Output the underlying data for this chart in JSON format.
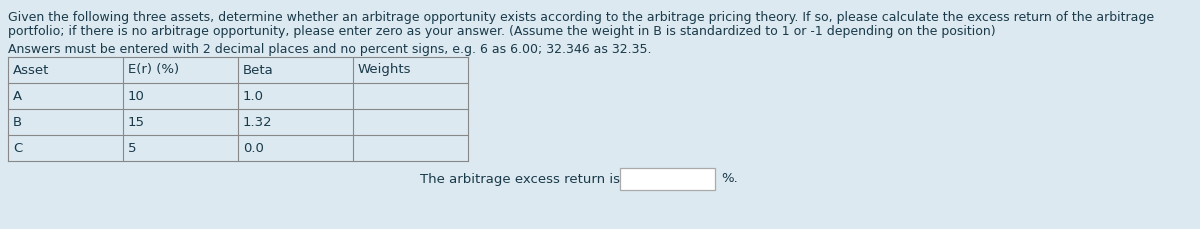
{
  "background_color": "#dce9f0",
  "text_color": "#1a3a4a",
  "title_line1": "Given the following three assets, determine whether an arbitrage opportunity exists according to the arbitrage pricing theory. If so, please calculate the excess return of the arbitrage",
  "title_line2": "portfolio; if there is no arbitrage opportunity, please enter zero as your answer. (Assume the weight in B is standardized to 1 or -1 depending on the position)",
  "subtitle": "Answers must be entered with 2 decimal places and no percent signs, e.g. 6 as 6.00; 32.346 as 32.35.",
  "table_headers": [
    "Asset",
    "E(r) (%)",
    "Beta",
    "Weights"
  ],
  "table_rows": [
    [
      "A",
      "10",
      "1.0",
      ""
    ],
    [
      "B",
      "15",
      "1.32",
      ""
    ],
    [
      "C",
      "5",
      "0.0",
      ""
    ]
  ],
  "footer_text": "The arbitrage excess return is",
  "footer_suffix": "%.",
  "font_size_title": 9.0,
  "font_size_table": 9.5,
  "line_color": "#888888",
  "box_color": "#f0f4f6",
  "box_edge_color": "#aaaaaa"
}
